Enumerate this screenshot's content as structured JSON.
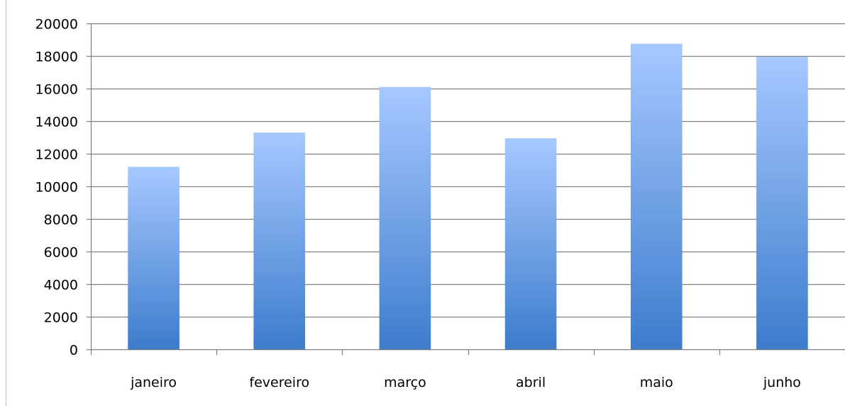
{
  "chart_data": {
    "type": "bar",
    "categories": [
      "janeiro",
      "fevereiro",
      "março",
      "abril",
      "maio",
      "junho"
    ],
    "values": [
      11200,
      13300,
      16100,
      12950,
      18750,
      17950
    ],
    "y_ticks": [
      "0",
      "2000",
      "4000",
      "6000",
      "8000",
      "10000",
      "12000",
      "14000",
      "16000",
      "18000",
      "20000"
    ],
    "ylim": [
      0,
      20000
    ],
    "grid": true,
    "legend": false,
    "title": "",
    "xlabel": "",
    "ylabel": ""
  },
  "colors": {
    "bar_top": "#a6c8ff",
    "bar_bottom": "#3d7ccc",
    "gridline": "#7f7f7f",
    "axis": "#7f7f7f"
  }
}
